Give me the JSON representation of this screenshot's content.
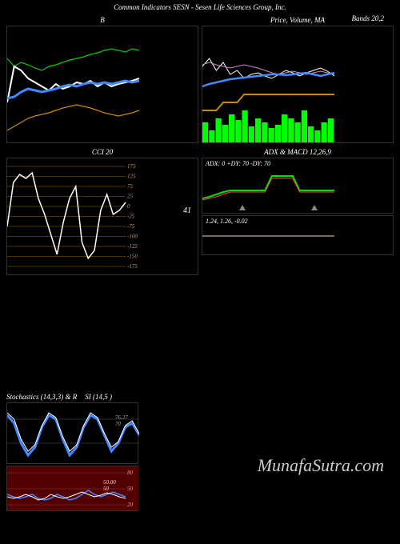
{
  "header": {
    "text": "Common Indicators SESN - Sesen Life Sciences Group, Inc."
  },
  "right_title": "Bands 20,2",
  "watermark": "MunafaSutra.com",
  "charts": {
    "bollinger": {
      "title": "B",
      "type": "line",
      "width": 165,
      "height": 145,
      "background": "#000000",
      "series": [
        {
          "color": "#00cc00",
          "width": 1.2,
          "points": [
            40,
            50,
            45,
            48,
            52,
            55,
            50,
            48,
            45,
            42,
            40,
            38,
            35,
            33,
            30,
            28,
            30,
            32,
            28,
            30
          ]
        },
        {
          "color": "#ffffff",
          "width": 2,
          "points": [
            95,
            50,
            55,
            65,
            70,
            75,
            80,
            72,
            78,
            75,
            70,
            72,
            68,
            75,
            70,
            75,
            72,
            70,
            68,
            65
          ]
        },
        {
          "color": "#4488ff",
          "width": 3,
          "points": [
            90,
            88,
            82,
            78,
            80,
            82,
            80,
            78,
            75,
            73,
            75,
            72,
            70,
            72,
            70,
            72,
            70,
            68,
            70,
            68
          ]
        },
        {
          "color": "#cc8800",
          "width": 1.2,
          "points": [
            130,
            125,
            120,
            115,
            112,
            110,
            108,
            105,
            102,
            100,
            98,
            100,
            102,
            105,
            108,
            110,
            112,
            110,
            108,
            105
          ]
        }
      ]
    },
    "price": {
      "title": "Price, Volume, MA",
      "type": "line",
      "width": 165,
      "height": 145,
      "background": "#000000",
      "series": [
        {
          "color": "#ffffff",
          "width": 1,
          "points": [
            50,
            40,
            55,
            45,
            60,
            55,
            65,
            60,
            58,
            62,
            65,
            60,
            55,
            58,
            62,
            58,
            55,
            52,
            56,
            62
          ]
        },
        {
          "color": "#cc88cc",
          "width": 1,
          "points": [
            48,
            45,
            48,
            50,
            52,
            50,
            48,
            50,
            52,
            55,
            58,
            60,
            58,
            56,
            58,
            60,
            58,
            56,
            58,
            60
          ]
        },
        {
          "color": "#4488ff",
          "width": 2.5,
          "points": [
            75,
            72,
            70,
            68,
            66,
            65,
            64,
            63,
            62,
            61,
            60,
            60,
            61,
            60,
            59,
            58,
            60,
            62,
            60,
            58
          ]
        },
        {
          "color": "#cc8800",
          "width": 2,
          "points": [
            105,
            105,
            105,
            95,
            95,
            95,
            85,
            85,
            85,
            85,
            85,
            85,
            85,
            85,
            85,
            85,
            85,
            85,
            85,
            85
          ]
        }
      ],
      "volume": {
        "color": "#00ff00",
        "bars": [
          25,
          15,
          30,
          22,
          35,
          28,
          40,
          20,
          30,
          25,
          18,
          22,
          35,
          30,
          25,
          40,
          20,
          15,
          25,
          30
        ]
      }
    },
    "cci": {
      "title": "CCI 20",
      "type": "line",
      "width": 165,
      "height": 145,
      "background": "#000000",
      "gridlines": [
        175,
        125,
        75,
        25,
        0,
        -25,
        -75,
        -100,
        -125,
        -150,
        -175
      ],
      "grid_color": "#996600",
      "current_value": "41",
      "series": [
        {
          "color": "#ffffff",
          "width": 1.5,
          "points": [
            85,
            30,
            20,
            25,
            18,
            50,
            70,
            95,
            120,
            80,
            50,
            35,
            105,
            125,
            115,
            65,
            45,
            70,
            65,
            55
          ]
        }
      ]
    },
    "adx_macd": {
      "title": "ADX & MACD 12,26,9",
      "type": "dual",
      "width": 165,
      "height": 145,
      "adx_label": "ADX: 0   +DY: 70  -DY: 70",
      "macd_label": "1.24,  1.26,  -0.02",
      "adx": {
        "series": [
          {
            "color": "#00dd00",
            "width": 2,
            "points": [
              50,
              48,
              45,
              42,
              40,
              40,
              40,
              40,
              40,
              40,
              22,
              22,
              22,
              22,
              40,
              40,
              40,
              40,
              40,
              40
            ]
          },
          {
            "color": "#ff4444",
            "width": 1,
            "points": [
              52,
              50,
              48,
              45,
              42,
              42,
              42,
              42,
              42,
              42,
              25,
              25,
              25,
              25,
              42,
              42,
              42,
              42,
              42,
              42
            ]
          }
        ],
        "marker": {
          "shape": "triangle",
          "color": "#888888",
          "positions": [
            50,
            140
          ]
        }
      },
      "macd": {
        "series": [
          {
            "color": "#ffccaa",
            "width": 1,
            "points": [
              25,
              25,
              25,
              25,
              25,
              25,
              25,
              25,
              25,
              25,
              25,
              25,
              25,
              25,
              25,
              25,
              25,
              25,
              25,
              25
            ]
          }
        ]
      }
    },
    "stochastics": {
      "title": "Stochastics          (14,3,3) & R",
      "title_right": "SI                       (14,5                    )",
      "type": "line",
      "width": 165,
      "height": 75,
      "background": "#000000",
      "series": [
        {
          "color": "#4488ff",
          "width": 3,
          "points": [
            15,
            25,
            50,
            65,
            55,
            30,
            15,
            20,
            45,
            65,
            55,
            30,
            15,
            20,
            40,
            60,
            50,
            30,
            25,
            40
          ]
        },
        {
          "color": "#ffffff",
          "width": 1,
          "points": [
            12,
            20,
            45,
            60,
            52,
            28,
            12,
            18,
            42,
            60,
            52,
            28,
            12,
            18,
            38,
            55,
            48,
            28,
            22,
            38
          ]
        }
      ],
      "labels": [
        "76.27",
        "70"
      ]
    },
    "rsi": {
      "type": "line",
      "width": 165,
      "height": 55,
      "background": "#550000",
      "gridlines": [
        80,
        50,
        20
      ],
      "series": [
        {
          "color": "#4488ff",
          "width": 1.5,
          "points": [
            35,
            38,
            40,
            38,
            35,
            40,
            42,
            40,
            35,
            38,
            42,
            40,
            35,
            30,
            35,
            38,
            35,
            32,
            35,
            38
          ]
        },
        {
          "color": "#ffffff",
          "width": 1,
          "points": [
            38,
            40,
            38,
            35,
            38,
            42,
            40,
            35,
            38,
            40,
            38,
            35,
            32,
            35,
            38,
            36,
            33,
            35,
            38,
            40
          ]
        }
      ],
      "labels": [
        "50.00",
        "50"
      ]
    }
  }
}
